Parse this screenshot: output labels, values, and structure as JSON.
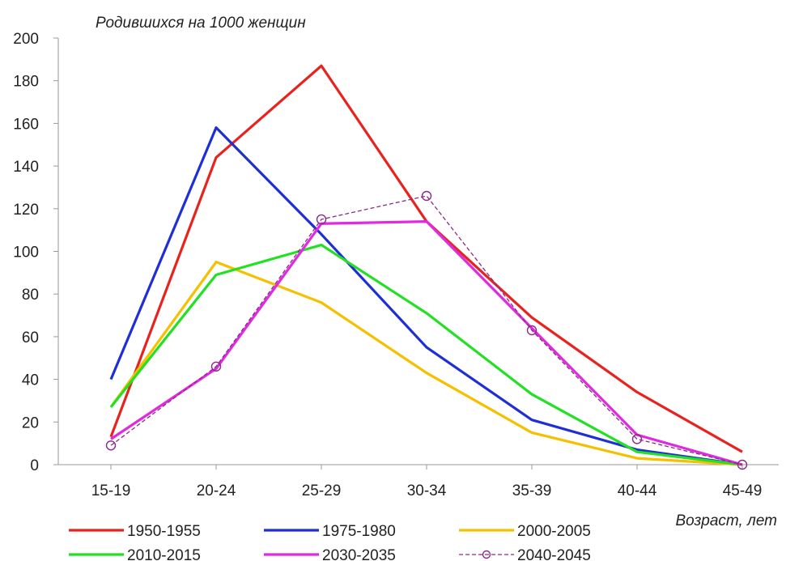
{
  "chart_data": {
    "type": "line",
    "ylabel": "Родившихся на 1000 женщин",
    "xlabel": "Возраст, лет",
    "categories": [
      "15-19",
      "20-24",
      "25-29",
      "30-34",
      "35-39",
      "40-44",
      "45-49"
    ],
    "ylim": [
      0,
      200
    ],
    "yticks": [
      "0",
      "20",
      "40",
      "60",
      "80",
      "100",
      "120",
      "140",
      "160",
      "180",
      "200"
    ],
    "grid": false,
    "legend_position": "bottom",
    "series": [
      {
        "name": "1950-1955",
        "color": "#e8231e",
        "style": "solid",
        "values": [
          13,
          144,
          187,
          114,
          69,
          34,
          6
        ]
      },
      {
        "name": "1975-1980",
        "color": "#1f2fd8",
        "style": "solid",
        "values": [
          40,
          158,
          108,
          55,
          21,
          7,
          0
        ]
      },
      {
        "name": "2000-2005",
        "color": "#f5c000",
        "style": "solid",
        "values": [
          27,
          95,
          76,
          43,
          15,
          3,
          0
        ]
      },
      {
        "name": "2010-2015",
        "color": "#22e022",
        "style": "solid",
        "values": [
          27,
          89,
          103,
          71,
          33,
          6,
          0
        ]
      },
      {
        "name": "2030-2035",
        "color": "#e02ae0",
        "style": "solid",
        "values": [
          12,
          45,
          113,
          114,
          64,
          14,
          0
        ]
      },
      {
        "name": "2040-2045",
        "color": "#8a2a8a",
        "style": "dashed-markers",
        "values": [
          9,
          46,
          115,
          126,
          63,
          12,
          0
        ]
      }
    ]
  }
}
